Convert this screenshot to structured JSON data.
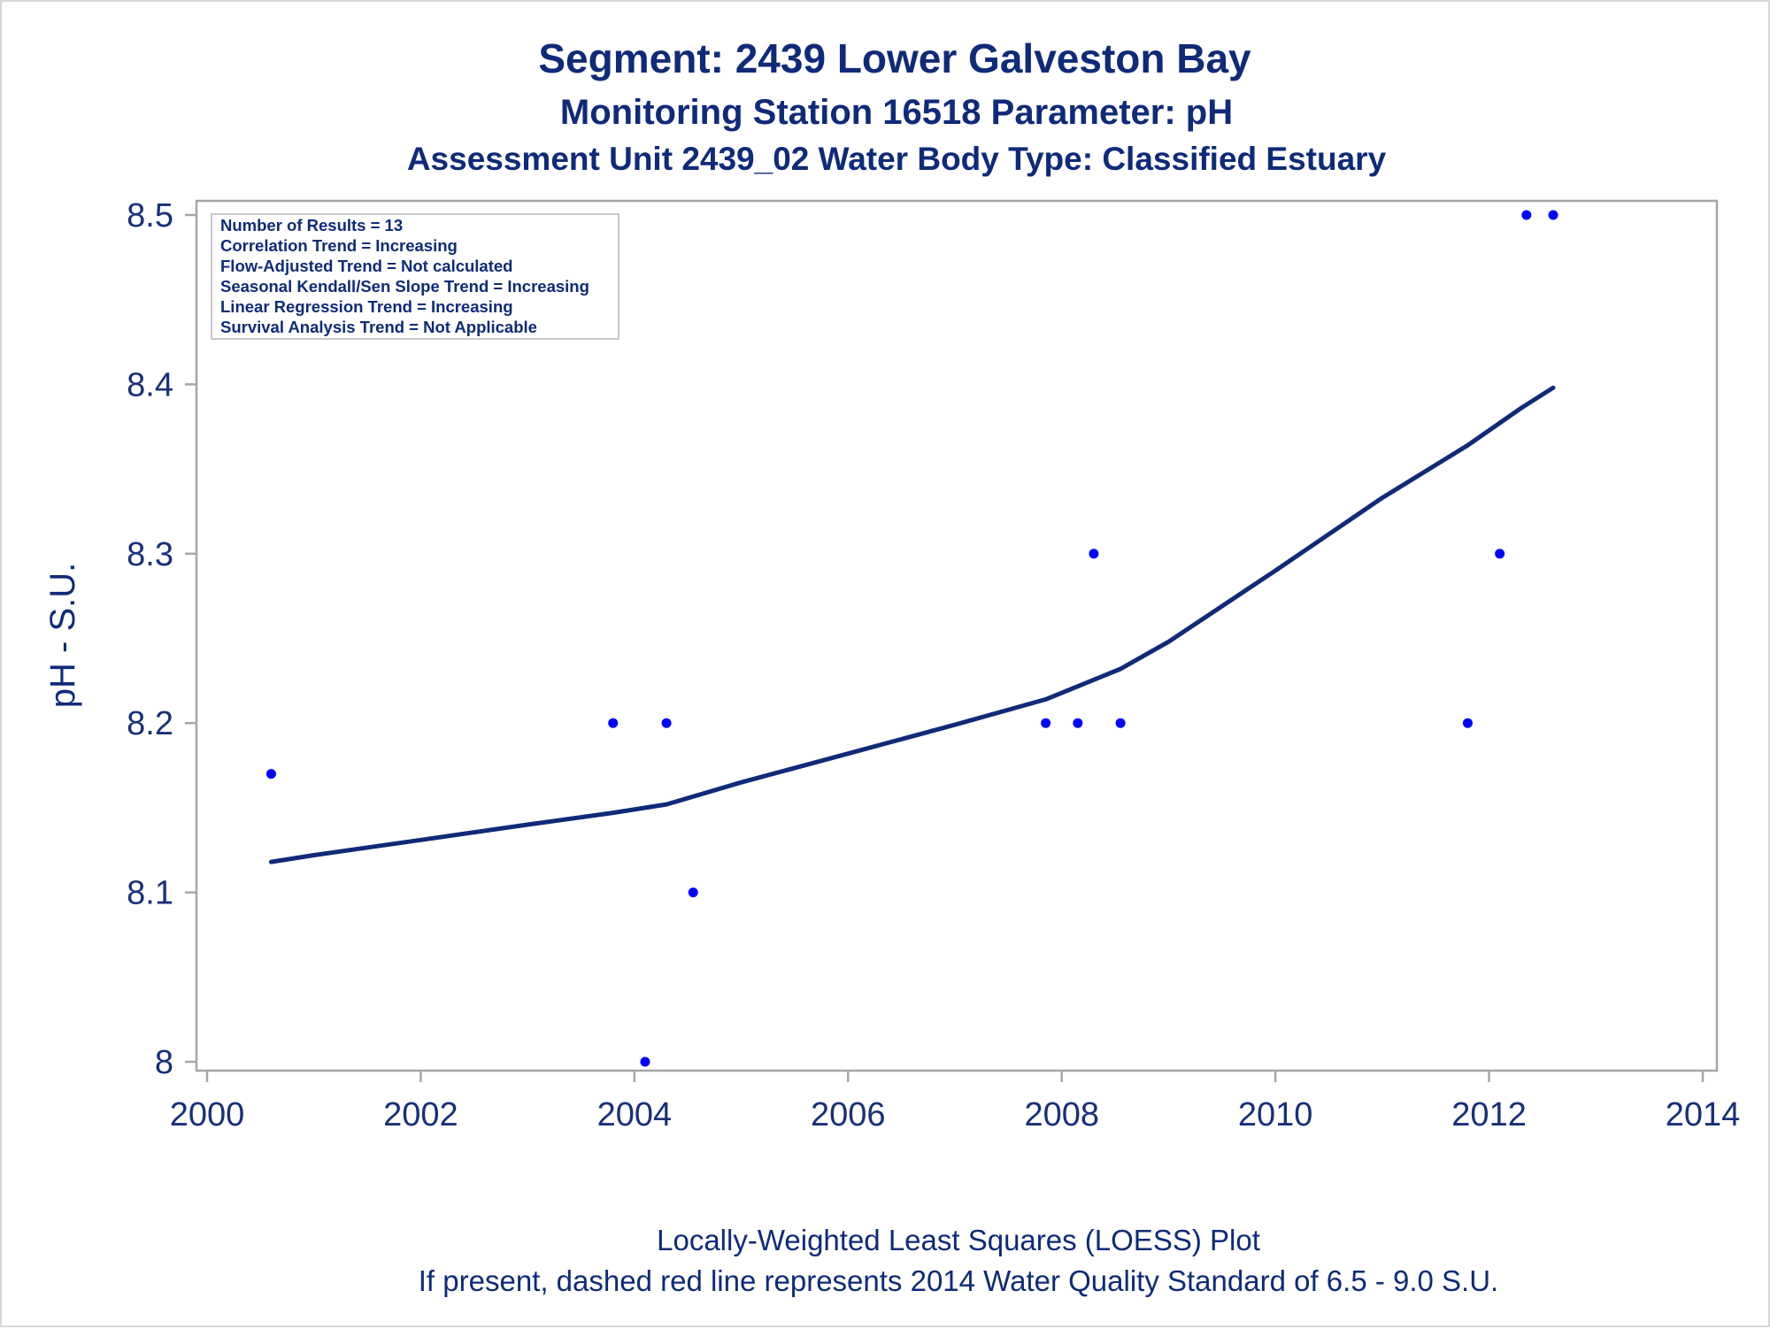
{
  "chart_data": {
    "type": "scatter",
    "title": "Segment: 2439  Lower Galveston Bay",
    "subtitle": "Monitoring Station 16518 Parameter: pH",
    "subtitle2": "Assessment Unit 2439_02   Water Body Type: Classified Estuary",
    "xlabel": "",
    "ylabel": "pH - S.U.",
    "xlim": [
      2000,
      2014
    ],
    "ylim": [
      8,
      8.5
    ],
    "x_ticks": [
      "2000",
      "2002",
      "2004",
      "2006",
      "2008",
      "2010",
      "2012",
      "2014"
    ],
    "y_ticks": [
      "8",
      "8.1",
      "8.2",
      "8.3",
      "8.4",
      "8.5"
    ],
    "series": [
      {
        "type": "scatter",
        "color": "#0000ff",
        "points": [
          {
            "x": 2000.6,
            "y": 8.17
          },
          {
            "x": 2003.8,
            "y": 8.2
          },
          {
            "x": 2004.1,
            "y": 8.0
          },
          {
            "x": 2004.3,
            "y": 8.2
          },
          {
            "x": 2004.55,
            "y": 8.1
          },
          {
            "x": 2007.85,
            "y": 8.2
          },
          {
            "x": 2008.15,
            "y": 8.2
          },
          {
            "x": 2008.3,
            "y": 8.3
          },
          {
            "x": 2008.55,
            "y": 8.2
          },
          {
            "x": 2011.8,
            "y": 8.2
          },
          {
            "x": 2012.1,
            "y": 8.3
          },
          {
            "x": 2012.35,
            "y": 8.5
          },
          {
            "x": 2012.6,
            "y": 8.5
          }
        ]
      },
      {
        "type": "line",
        "color": "#0f2a78",
        "points": [
          {
            "x": 2000.6,
            "y": 8.118
          },
          {
            "x": 2001.0,
            "y": 8.122
          },
          {
            "x": 2002.0,
            "y": 8.131
          },
          {
            "x": 2003.0,
            "y": 8.14
          },
          {
            "x": 2003.8,
            "y": 8.147
          },
          {
            "x": 2004.3,
            "y": 8.152
          },
          {
            "x": 2005.0,
            "y": 8.165
          },
          {
            "x": 2006.0,
            "y": 8.182
          },
          {
            "x": 2007.0,
            "y": 8.199
          },
          {
            "x": 2007.85,
            "y": 8.214
          },
          {
            "x": 2008.55,
            "y": 8.232
          },
          {
            "x": 2009.0,
            "y": 8.248
          },
          {
            "x": 2010.0,
            "y": 8.29
          },
          {
            "x": 2011.0,
            "y": 8.333
          },
          {
            "x": 2011.8,
            "y": 8.364
          },
          {
            "x": 2012.3,
            "y": 8.386
          },
          {
            "x": 2012.6,
            "y": 8.398
          }
        ]
      }
    ],
    "inset_box": [
      "Number of Results = 13",
      "Correlation Trend = Increasing",
      "Flow-Adjusted Trend = Not calculated",
      "Seasonal Kendall/Sen Slope Trend = Increasing",
      "Linear Regression Trend = Increasing",
      "Survival Analysis Trend = Not Applicable"
    ],
    "footer": [
      "Locally-Weighted Least Squares (LOESS) Plot",
      "If present, dashed red line represents 2014 Water Quality Standard of 6.5 - 9.0 S.U."
    ],
    "grid": false,
    "colors": {
      "text": "#0f2a78",
      "axis": "#a6a6a6",
      "points": "#0000ff",
      "line": "#0f2a78"
    }
  }
}
